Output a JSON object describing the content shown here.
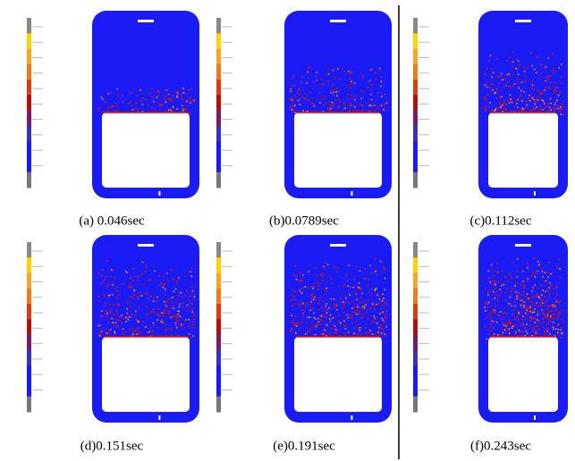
{
  "panels": [
    {
      "caption": "(a) 0.046sec"
    },
    {
      "caption": "(b)0.0789sec"
    },
    {
      "caption": "(c)0.112sec"
    },
    {
      "caption": "(d)0.151sec"
    },
    {
      "caption": "(e)0.191sec"
    },
    {
      "caption": "(f)0.243sec"
    }
  ]
}
